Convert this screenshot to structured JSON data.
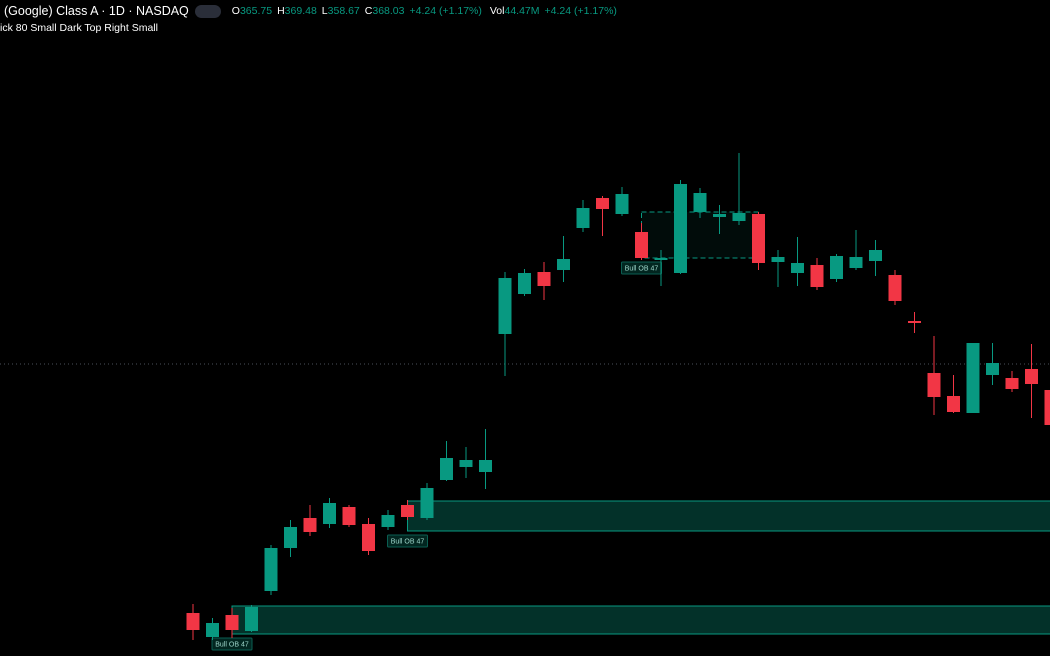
{
  "chart_data": {
    "type": "candlestick",
    "header": {
      "symbol": "(Google) Class A · 1D · NASDAQ",
      "O": {
        "label": "O",
        "value": "365.75"
      },
      "H": {
        "label": "H",
        "value": "369.48"
      },
      "L": {
        "label": "L",
        "value": "358.67"
      },
      "C": {
        "label": "C",
        "value": "368.03"
      },
      "change": "+4.24 (+1.17%)",
      "Vol": {
        "label": "Vol",
        "value": "44.47M"
      },
      "vol_change": "+4.24 (+1.17%)",
      "indicator": "ick 80 Small Dark Top Right Small"
    },
    "ylim": [
      334.4,
      400
    ],
    "up_color": "#089981",
    "down_color": "#f23645",
    "open": [
      338.7,
      336.3,
      338.5,
      336.9,
      340.9,
      345.2,
      348.2,
      347.6,
      349.3,
      347.6,
      347.3,
      349.5,
      348.2,
      352.0,
      353.3,
      352.8,
      366.6,
      370.6,
      372.8,
      373.0,
      377.2,
      380.2,
      378.6,
      376.8,
      374.0,
      372.7,
      378.8,
      378.3,
      377.9,
      378.6,
      373.8,
      372.7,
      373.5,
      372.1,
      373.2,
      373.9,
      372.5,
      367.9,
      362.7,
      360.4,
      358.7,
      362.5,
      362.2,
      363.1,
      361.0
    ],
    "high": [
      339.6,
      338.2,
      339.2,
      339.5,
      345.5,
      348.0,
      349.5,
      350.2,
      349.5,
      348.2,
      349.0,
      350.0,
      351.7,
      355.9,
      355.3,
      357.1,
      372.8,
      373.1,
      373.8,
      376.4,
      380.0,
      380.4,
      381.3,
      377.7,
      375.0,
      382.0,
      381.2,
      379.5,
      384.7,
      378.8,
      375.0,
      376.3,
      374.2,
      374.6,
      377.0,
      376.0,
      373.0,
      368.8,
      366.4,
      362.5,
      365.7,
      365.7,
      362.9,
      365.6,
      363.0
    ],
    "low": [
      336.0,
      336.0,
      336.2,
      336.8,
      340.5,
      344.3,
      346.4,
      347.2,
      347.3,
      344.5,
      347.0,
      348.0,
      348.0,
      351.9,
      352.2,
      351.1,
      362.4,
      370.4,
      370.0,
      371.8,
      376.8,
      376.4,
      378.4,
      374.0,
      371.4,
      372.6,
      378.2,
      376.6,
      377.5,
      373.0,
      371.3,
      371.4,
      371.0,
      371.8,
      373.0,
      372.4,
      369.5,
      366.7,
      358.5,
      358.7,
      358.7,
      361.5,
      360.8,
      358.2,
      357.0
    ],
    "close": [
      337.0,
      337.7,
      337.0,
      339.3,
      345.2,
      347.3,
      346.8,
      349.7,
      347.5,
      344.9,
      348.5,
      348.3,
      351.2,
      354.2,
      354.0,
      354.0,
      372.2,
      372.7,
      371.4,
      374.1,
      379.2,
      379.1,
      380.6,
      374.2,
      374.2,
      381.6,
      380.7,
      378.6,
      378.7,
      373.7,
      374.3,
      373.7,
      371.3,
      374.4,
      374.3,
      375.0,
      369.9,
      367.7,
      360.3,
      358.8,
      365.7,
      363.7,
      361.1,
      361.6,
      357.5
    ],
    "price_line": 363.6,
    "zones": [
      {
        "label": "Bull OB 47",
        "top": 349.9,
        "bottom": 346.9,
        "start": 11,
        "style": "solid"
      },
      {
        "label": "Bull OB 47",
        "top": 339.4,
        "bottom": 336.6,
        "start": 2,
        "style": "solid"
      },
      {
        "label": "Bull OB 47",
        "top": 378.8,
        "bottom": 374.2,
        "start": 23,
        "end": 29,
        "style": "dashed"
      }
    ]
  }
}
